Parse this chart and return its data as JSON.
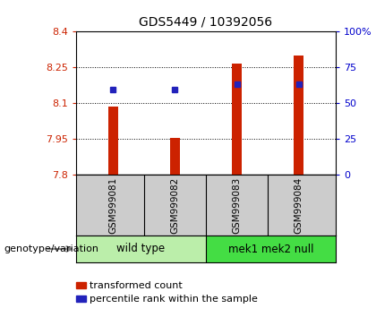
{
  "title": "GDS5449 / 10392056",
  "samples": [
    "GSM999081",
    "GSM999082",
    "GSM999083",
    "GSM999084"
  ],
  "transformed_counts": [
    8.085,
    7.955,
    8.265,
    8.3
  ],
  "percentile_ranks": [
    8.155,
    8.155,
    8.18,
    8.18
  ],
  "ylim_left": [
    7.8,
    8.4
  ],
  "ylim_right": [
    0,
    100
  ],
  "yticks_left": [
    7.8,
    7.95,
    8.1,
    8.25,
    8.4
  ],
  "yticks_right": [
    0,
    25,
    50,
    75,
    100
  ],
  "bar_color": "#cc2200",
  "dot_color": "#2222bb",
  "group1_color_light": "#bbeeaa",
  "group2_color_bright": "#44dd44",
  "sample_bg_color": "#cccccc",
  "legend_items": [
    {
      "color": "#cc2200",
      "label": "transformed count"
    },
    {
      "color": "#2222bb",
      "label": "percentile rank within the sample"
    }
  ],
  "genotype_label": "genotype/variation"
}
